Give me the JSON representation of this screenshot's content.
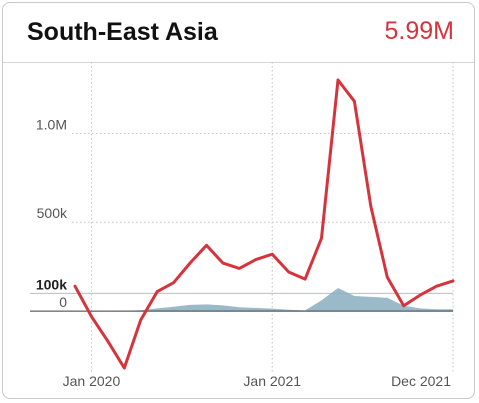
{
  "header": {
    "title": "South-East Asia",
    "value": "5.99M"
  },
  "colors": {
    "line": "#d6343d",
    "area": "#8fb3c4",
    "value": "#d6343d"
  },
  "chart_data": {
    "type": "line",
    "x_tick_labels": [
      "Jan 2020",
      "Jan 2021",
      "Dec 2021"
    ],
    "y_tick_labels": [
      "1.0M",
      "500k",
      "100k",
      "0"
    ],
    "ylim": [
      -320000,
      1300000
    ],
    "grid": true,
    "series": [
      {
        "style": "line",
        "values": [
          140000,
          -30000,
          -170000,
          -320000,
          -50000,
          110000,
          160000,
          270000,
          370000,
          270000,
          240000,
          290000,
          320000,
          220000,
          180000,
          410000,
          1300000,
          1180000,
          590000,
          190000,
          30000,
          90000,
          140000,
          170000
        ]
      },
      {
        "style": "area",
        "values": [
          0,
          0,
          0,
          2000,
          5000,
          15000,
          25000,
          35000,
          38000,
          32000,
          22000,
          18000,
          14000,
          8000,
          4000,
          60000,
          130000,
          85000,
          80000,
          75000,
          30000,
          15000,
          10000,
          10000
        ]
      }
    ]
  }
}
